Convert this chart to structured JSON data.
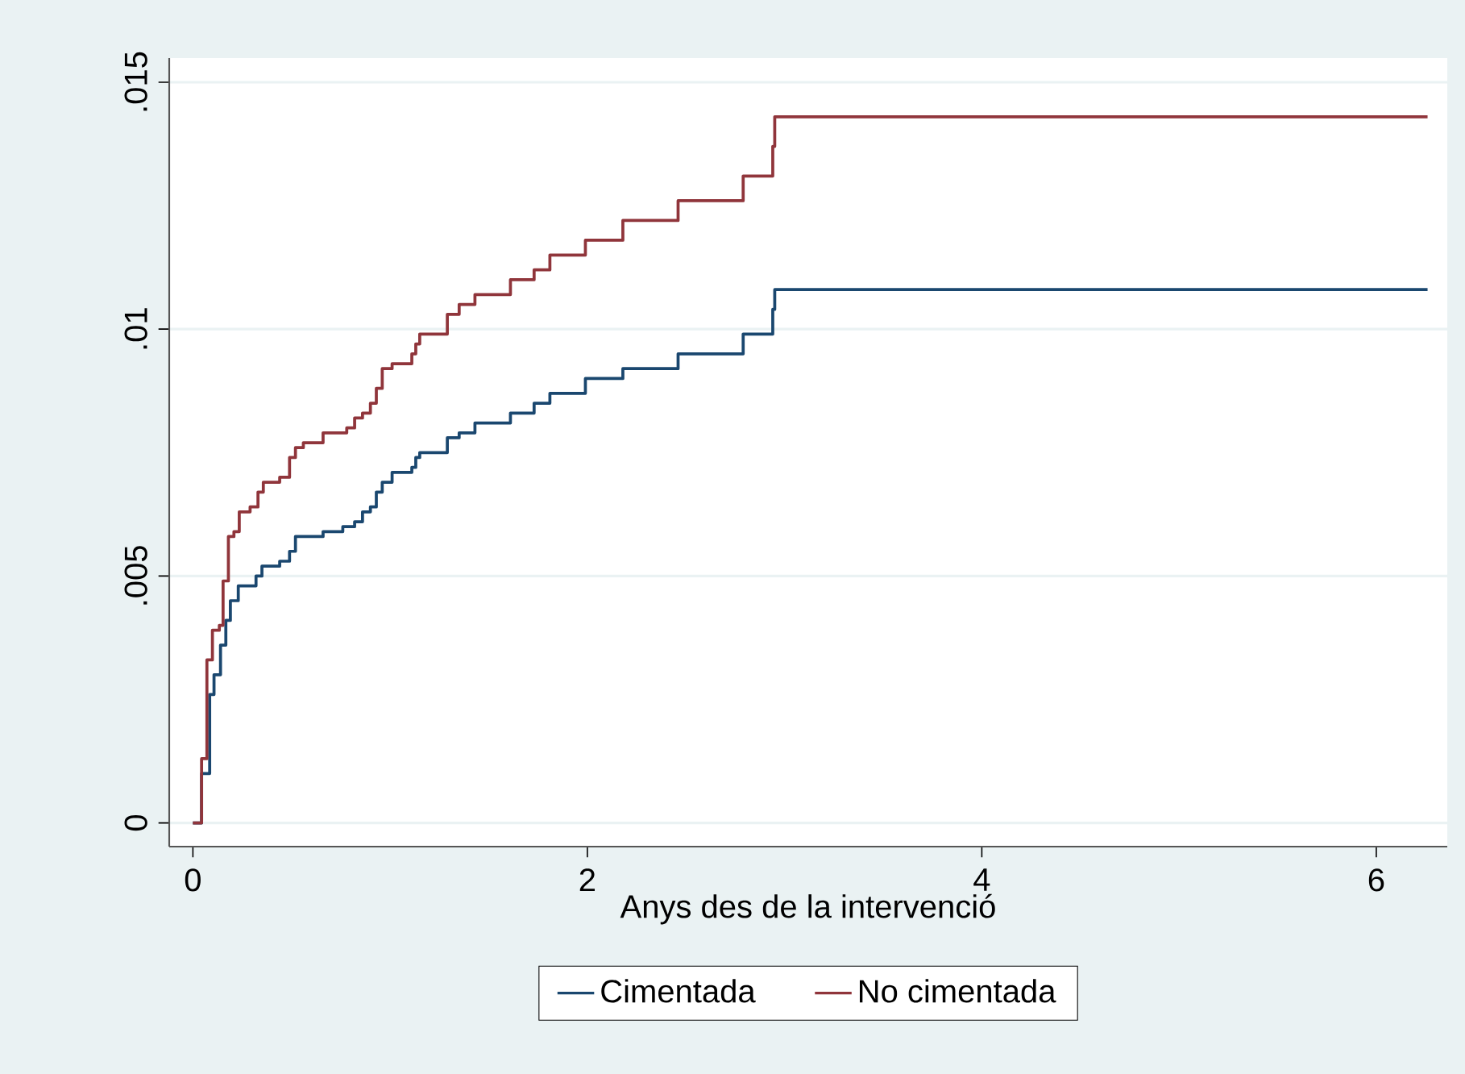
{
  "chart_data": {
    "type": "step",
    "xlabel": "Anys des de la intervenció",
    "xlim": [
      -0.12,
      6.36
    ],
    "ylim": [
      -0.00048,
      0.01549
    ],
    "xticks": [
      0,
      2,
      4,
      6
    ],
    "yticks": [
      0,
      {
        "value": 0.005,
        "label": ".005"
      },
      {
        "value": 0.01,
        "label": ".01"
      },
      {
        "value": 0.015,
        "label": ".015"
      }
    ],
    "grid": "y",
    "legend": "bottom",
    "marker": "none",
    "series": [
      {
        "name": "Cimentada",
        "color": "#1a476f",
        "x": [
          0,
          0.044,
          0.085,
          0.107,
          0.14,
          0.167,
          0.19,
          0.23,
          0.32,
          0.35,
          0.44,
          0.49,
          0.52,
          0.66,
          0.76,
          0.82,
          0.86,
          0.9,
          0.93,
          0.96,
          1.01,
          1.11,
          1.13,
          1.15,
          1.29,
          1.35,
          1.43,
          1.61,
          1.73,
          1.81,
          1.99,
          2.18,
          2.46,
          2.79,
          2.94,
          2.95,
          6.26
        ],
        "values": [
          0,
          0.001,
          0.0026,
          0.003,
          0.0036,
          0.0041,
          0.0045,
          0.0048,
          0.005,
          0.0052,
          0.0053,
          0.0055,
          0.0058,
          0.0059,
          0.006,
          0.0061,
          0.0063,
          0.0064,
          0.0067,
          0.0069,
          0.0071,
          0.0072,
          0.0074,
          0.0075,
          0.0078,
          0.0079,
          0.0081,
          0.0083,
          0.0085,
          0.0087,
          0.009,
          0.0092,
          0.0095,
          0.0099,
          0.0104,
          0.0108,
          0.0108
        ]
      },
      {
        "name": "No cimentada",
        "color": "#90353b",
        "x": [
          0,
          0.044,
          0.071,
          0.099,
          0.134,
          0.153,
          0.18,
          0.208,
          0.235,
          0.29,
          0.33,
          0.357,
          0.44,
          0.49,
          0.52,
          0.56,
          0.66,
          0.78,
          0.82,
          0.86,
          0.9,
          0.93,
          0.96,
          1.01,
          1.11,
          1.13,
          1.15,
          1.29,
          1.35,
          1.43,
          1.61,
          1.73,
          1.81,
          1.99,
          2.18,
          2.46,
          2.79,
          2.94,
          2.95,
          6.26
        ],
        "values": [
          0,
          0.0013,
          0.0033,
          0.0039,
          0.004,
          0.0049,
          0.0058,
          0.0059,
          0.0063,
          0.0064,
          0.0067,
          0.0069,
          0.007,
          0.0074,
          0.0076,
          0.0077,
          0.0079,
          0.008,
          0.0082,
          0.0083,
          0.0085,
          0.0088,
          0.0092,
          0.0093,
          0.0095,
          0.0097,
          0.0099,
          0.0103,
          0.0105,
          0.0107,
          0.011,
          0.0112,
          0.0115,
          0.0118,
          0.0122,
          0.0126,
          0.0131,
          0.0137,
          0.0143,
          0.0143
        ]
      }
    ]
  }
}
